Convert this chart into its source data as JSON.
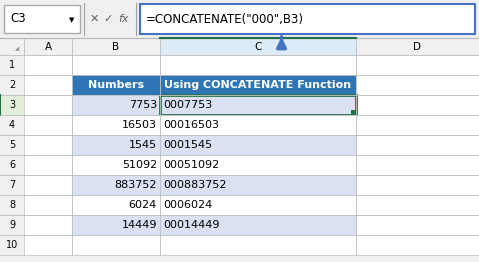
{
  "formula_bar_cell": "C3",
  "formula_bar_formula": "=CONCATENATE(\"000\",B3)",
  "numbers_col": [
    7753,
    16503,
    1545,
    51092,
    883752,
    6024,
    14449
  ],
  "concatenate_col": [
    "0007753",
    "00016503",
    "0001545",
    "00051092",
    "000883752",
    "0006024",
    "00014449"
  ],
  "header_bg": "#2E75B6",
  "header_fg": "#FFFFFF",
  "row_alt1_bg": "#D9E1F2",
  "row_alt2_bg": "#FFFFFF",
  "grid_color": "#C0C0C0",
  "excel_bg": "#F0F0F0",
  "formula_bar_bg": "#FFFFFF",
  "formula_bar_border": "#4472C4",
  "cell_ref_bg": "#FFFFFF",
  "arrow_color": "#4472C4",
  "active_col_header_bg": "#DDEBF7",
  "active_row_bg": "#E2EFDA",
  "selected_cell_border": "#217346",
  "col_header_bg": "#F0F0F0",
  "col_header_fg": "#000000",
  "row_header_bg": "#F0F0F0",
  "separator_color": "#A0A0A0",
  "icon_color": "#606060",
  "topleft_triangle_color": "#909090"
}
